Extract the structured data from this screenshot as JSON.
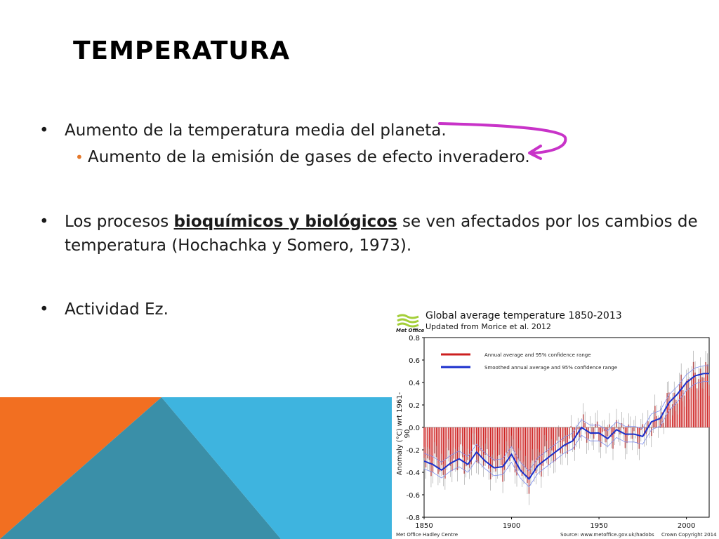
{
  "slide": {
    "title": "TEMPERATURA",
    "bullets": [
      {
        "text": "Aumento de la temperatura media del planeta."
      },
      {
        "text": "Aumento de la emisión de gases de efecto inveradero."
      },
      {
        "before": "Los procesos ",
        "emph": "bioquímicos y biológicos",
        "after": " se ven afectados por los cambios de",
        "line2": "temperatura (Hochachka y Somero, 1973)."
      },
      {
        "text": "Actividad Ez."
      }
    ],
    "colors": {
      "arrow": "#c833c8",
      "orange": "#f26f21",
      "teal": "#3a8fa8",
      "sky": "#3eb4df",
      "subbullet": "#e5782a"
    }
  },
  "chart_data": {
    "type": "bar",
    "title": "Global average temperature 1850-2013",
    "subtitle": "Updated from Morice et al. 2012",
    "ylabel": "Anomaly (°C) wrt 1961-90",
    "xlabel": "",
    "xlim": [
      1850,
      2013
    ],
    "ylim": [
      -0.8,
      0.8
    ],
    "yticks": [
      "0.8",
      "0.6",
      "0.4",
      "0.2",
      "0.0",
      "-0.2",
      "-0.4",
      "-0.6",
      "-0.8"
    ],
    "xticks": [
      "1850",
      "1900",
      "1950",
      "2000"
    ],
    "legend": [
      {
        "name": "Annual average and 95% confidence range",
        "color": "#cc1f1f"
      },
      {
        "name": "Smoothed annual average and 95% confidence range",
        "color": "#1a2fcc"
      }
    ],
    "legend_position": "top-left",
    "logo_text": "Met Office",
    "footer_left": "Met Office Hadley Centre",
    "footer_mid": "Source: www.metoffice.gov.uk/hadobs",
    "footer_right": "Crown Copyright 2014",
    "years": [
      1850,
      1855,
      1860,
      1865,
      1870,
      1875,
      1880,
      1885,
      1890,
      1895,
      1900,
      1905,
      1910,
      1915,
      1920,
      1925,
      1930,
      1935,
      1940,
      1945,
      1950,
      1955,
      1960,
      1965,
      1970,
      1975,
      1980,
      1985,
      1990,
      1995,
      2000,
      2005,
      2010,
      2013
    ],
    "smoothed": [
      -0.3,
      -0.33,
      -0.38,
      -0.32,
      -0.28,
      -0.33,
      -0.22,
      -0.3,
      -0.36,
      -0.35,
      -0.24,
      -0.38,
      -0.46,
      -0.34,
      -0.28,
      -0.22,
      -0.16,
      -0.12,
      0.0,
      -0.05,
      -0.05,
      -0.1,
      -0.02,
      -0.06,
      -0.06,
      -0.08,
      0.05,
      0.08,
      0.22,
      0.3,
      0.4,
      0.46,
      0.48,
      0.48
    ],
    "ci": 0.07
  }
}
